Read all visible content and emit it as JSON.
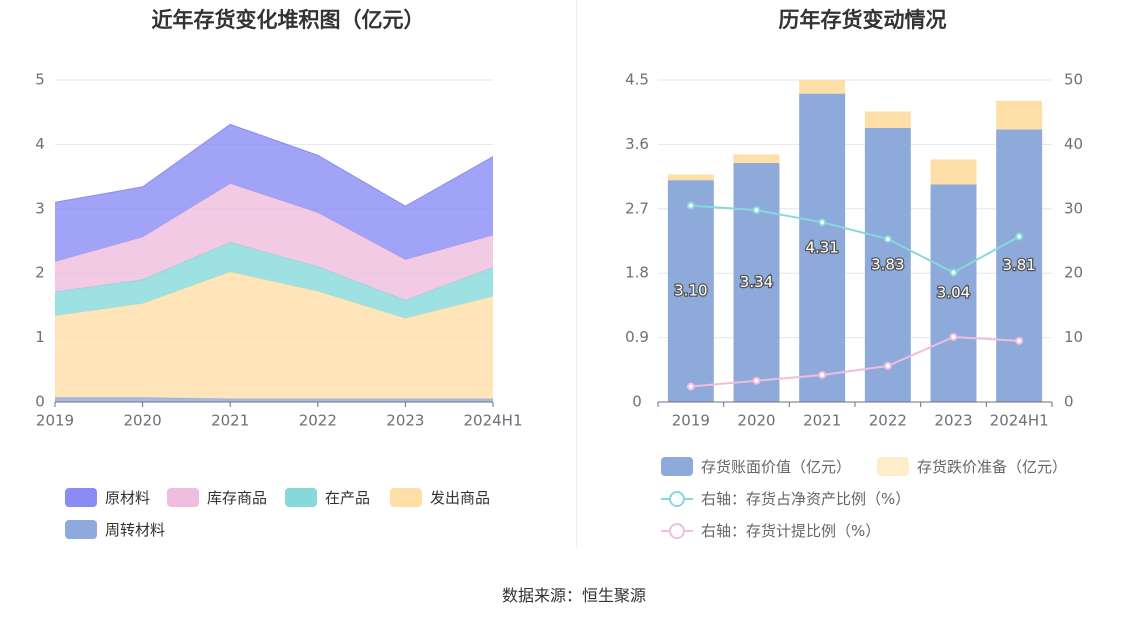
{
  "source_text": "数据来源：恒生聚源",
  "chart_data": [
    {
      "type": "area",
      "stacked": true,
      "title": "近年存货变化堆积图（亿元）",
      "categories": [
        "2019",
        "2020",
        "2021",
        "2022",
        "2023",
        "2024H1"
      ],
      "y_ticks": [
        "0",
        "1",
        "2",
        "3",
        "4",
        "5"
      ],
      "ylim": [
        0,
        5
      ],
      "series": [
        {
          "name": "周转材料",
          "color": "#8ea9db",
          "values": [
            0.07,
            0.07,
            0.05,
            0.05,
            0.05,
            0.05
          ]
        },
        {
          "name": "发出商品",
          "color": "#ffdfa8",
          "values": [
            1.27,
            1.46,
            1.97,
            1.67,
            1.25,
            1.59
          ]
        },
        {
          "name": "在产品",
          "color": "#86d9db",
          "values": [
            0.37,
            0.37,
            0.46,
            0.38,
            0.28,
            0.45
          ]
        },
        {
          "name": "库存商品",
          "color": "#efbddd",
          "values": [
            0.47,
            0.66,
            0.91,
            0.84,
            0.63,
            0.5
          ]
        },
        {
          "name": "原材料",
          "color": "#8a8cf4",
          "values": [
            0.92,
            0.78,
            0.92,
            0.89,
            0.83,
            1.22
          ]
        }
      ],
      "legend": [
        "原材料",
        "库存商品",
        "在产品",
        "发出商品",
        "周转材料"
      ],
      "legend_position": "bottom"
    },
    {
      "type": "bar",
      "stacked": true,
      "title": "历年存货变动情况",
      "categories": [
        "2019",
        "2020",
        "2021",
        "2022",
        "2023",
        "2024H1"
      ],
      "y_left_ticks": [
        "0",
        "0.9",
        "1.8",
        "2.7",
        "3.6",
        "4.5"
      ],
      "y_left_lim": [
        0,
        4.5
      ],
      "y_right_ticks": [
        "0",
        "10",
        "20",
        "30",
        "40",
        "50"
      ],
      "y_right_lim": [
        0,
        50
      ],
      "bars": [
        {
          "name": "存货账面价值（亿元）",
          "color": "#8eaadb",
          "values": [
            3.1,
            3.34,
            4.31,
            3.83,
            3.04,
            3.81
          ],
          "labels": [
            "3.10",
            "3.34",
            "4.31",
            "3.83",
            "3.04",
            "3.81"
          ]
        },
        {
          "name": "存货跌价准备（亿元）",
          "color": "#ffdfa8",
          "values": [
            0.08,
            0.12,
            0.19,
            0.23,
            0.35,
            0.4
          ]
        }
      ],
      "lines": [
        {
          "name": "右轴：存货占净资产比例（%）",
          "color": "#86d9db",
          "axis": "right",
          "values": [
            30.5,
            29.8,
            27.9,
            25.3,
            20.1,
            25.7
          ]
        },
        {
          "name": "右轴：存货计提比例（%）",
          "color": "#efbddd",
          "axis": "right",
          "values": [
            2.4,
            3.3,
            4.2,
            5.6,
            10.1,
            9.5
          ]
        }
      ],
      "legend_position": "bottom"
    }
  ]
}
